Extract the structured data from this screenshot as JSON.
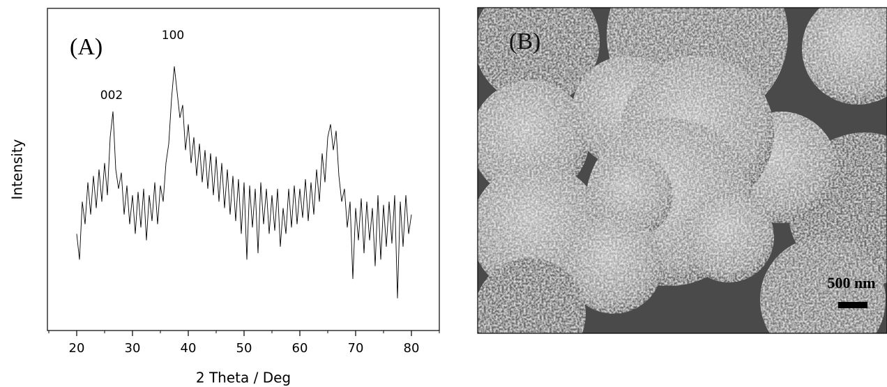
{
  "chart_data": {
    "type": "line",
    "panel_label": "(A)",
    "xlabel": "2 Theta / Deg",
    "ylabel": "Intensity",
    "annotations": [
      "002",
      "100"
    ],
    "x": [
      20,
      20.5,
      21,
      21.5,
      22,
      22.5,
      23,
      23.5,
      24,
      24.5,
      25,
      25.5,
      26,
      26.5,
      27,
      27.5,
      28,
      28.5,
      29,
      29.5,
      30,
      30.5,
      31,
      31.5,
      32,
      32.5,
      33,
      33.5,
      34,
      34.5,
      35,
      35.5,
      36,
      36.5,
      37,
      37.5,
      38,
      38.5,
      39,
      39.5,
      40,
      40.5,
      41,
      41.5,
      42,
      42.5,
      43,
      43.5,
      44,
      44.5,
      45,
      45.5,
      46,
      46.5,
      47,
      47.5,
      48,
      48.5,
      49,
      49.5,
      50,
      50.5,
      51,
      51.5,
      52,
      52.5,
      53,
      53.5,
      54,
      54.5,
      55,
      55.5,
      56,
      56.5,
      57,
      57.5,
      58,
      58.5,
      59,
      59.5,
      60,
      60.5,
      61,
      61.5,
      62,
      62.5,
      63,
      63.5,
      64,
      64.5,
      65,
      65.5,
      66,
      66.5,
      67,
      67.5,
      68,
      68.5,
      69,
      69.5,
      70,
      70.5,
      71,
      71.5,
      72,
      72.5,
      73,
      73.5,
      74,
      74.5,
      75,
      75.5,
      76,
      76.5,
      77,
      77.5,
      78,
      78.5,
      79,
      79.5,
      80
    ],
    "values": [
      30,
      22,
      40,
      33,
      46,
      36,
      48,
      38,
      50,
      40,
      52,
      42,
      60,
      68,
      50,
      44,
      49,
      36,
      45,
      33,
      42,
      30,
      43,
      32,
      44,
      28,
      42,
      34,
      46,
      33,
      45,
      40,
      52,
      58,
      72,
      82,
      74,
      66,
      70,
      56,
      64,
      52,
      60,
      48,
      58,
      46,
      56,
      44,
      55,
      42,
      54,
      40,
      52,
      38,
      50,
      36,
      48,
      34,
      47,
      30,
      46,
      22,
      45,
      32,
      44,
      24,
      46,
      33,
      44,
      30,
      42,
      31,
      44,
      26,
      38,
      30,
      44,
      32,
      45,
      33,
      44,
      35,
      47,
      34,
      46,
      36,
      50,
      40,
      55,
      46,
      60,
      64,
      56,
      62,
      48,
      40,
      44,
      32,
      40,
      16,
      38,
      28,
      41,
      24,
      40,
      28,
      38,
      20,
      42,
      22,
      39,
      26,
      40,
      27,
      42,
      10,
      40,
      26,
      42,
      30,
      36
    ],
    "color": "#000000",
    "xlim": [
      14.75,
      85
    ],
    "xticks": [
      20,
      30,
      40,
      50,
      60,
      70,
      80
    ],
    "xminorticks": [
      15,
      25,
      35,
      45,
      55,
      65,
      75,
      85
    ],
    "ylim": [
      0,
      100
    ]
  },
  "image": {
    "panel_label": "(B)",
    "scale_bar": "500 nm"
  }
}
